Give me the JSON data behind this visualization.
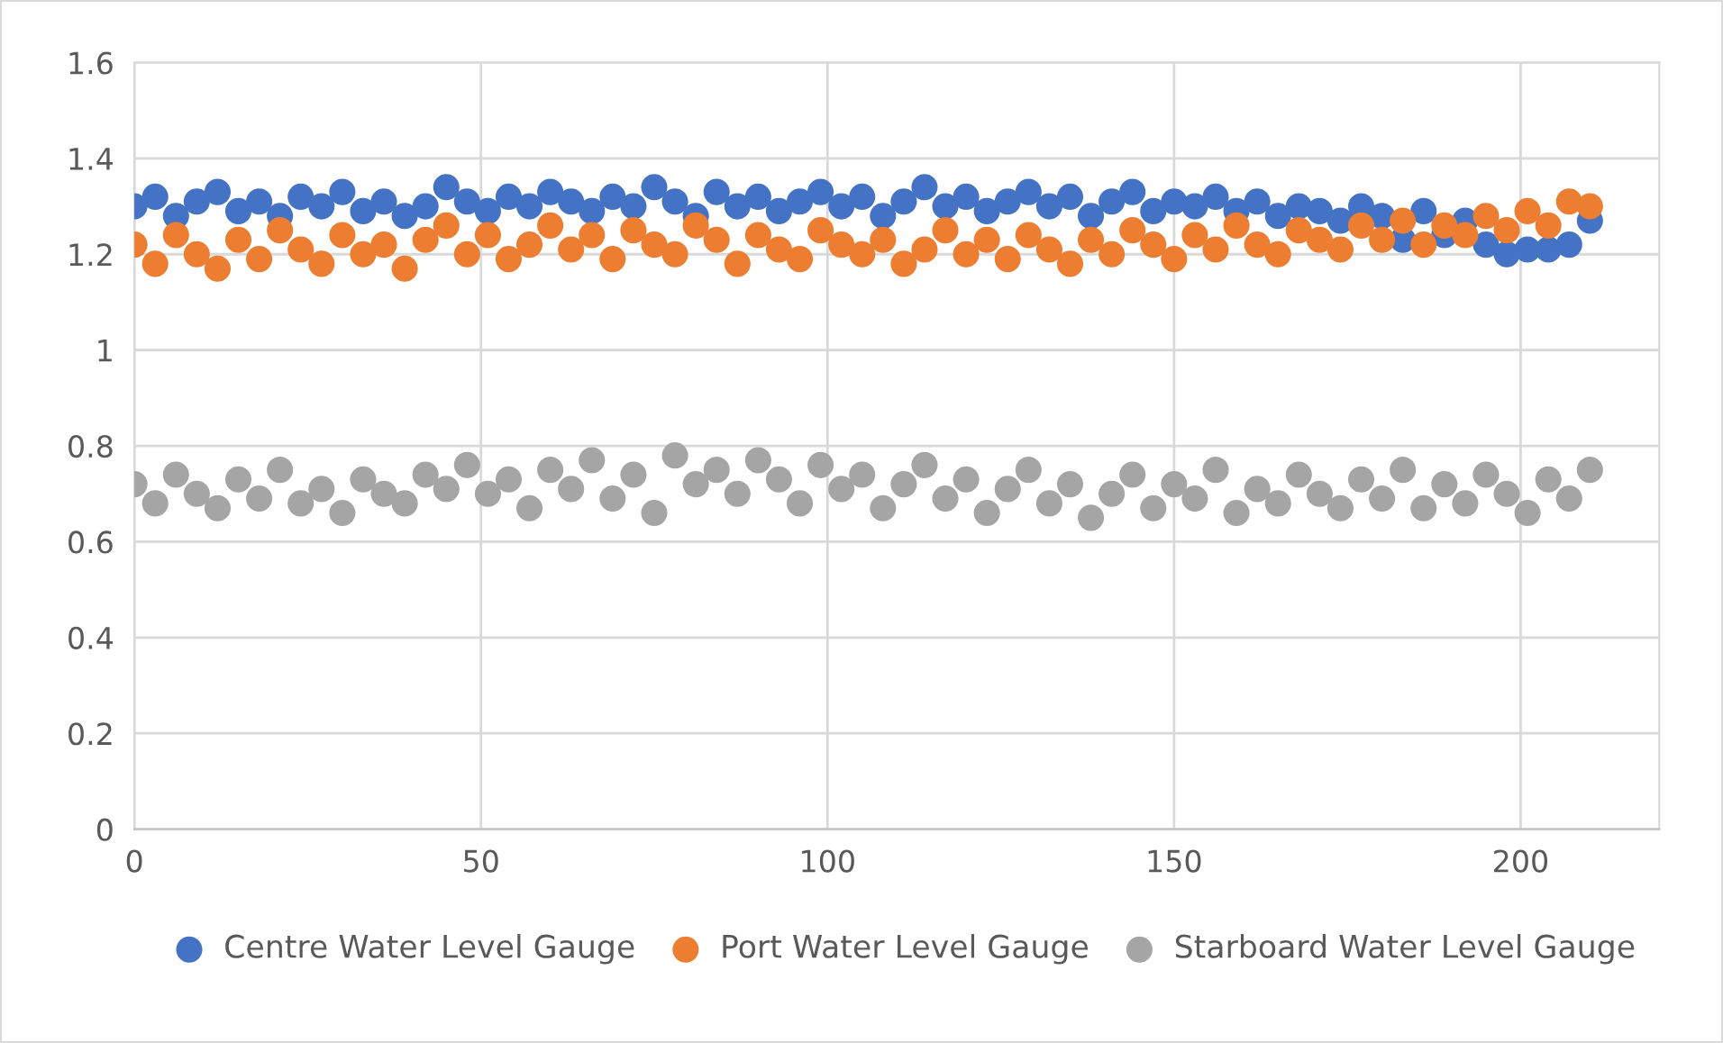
{
  "chart_data": {
    "type": "scatter",
    "x": [
      0,
      3,
      6,
      9,
      12,
      15,
      18,
      21,
      24,
      27,
      30,
      33,
      36,
      39,
      42,
      45,
      48,
      51,
      54,
      57,
      60,
      63,
      66,
      69,
      72,
      75,
      78,
      81,
      84,
      87,
      90,
      93,
      96,
      99,
      102,
      105,
      108,
      111,
      114,
      117,
      120,
      123,
      126,
      129,
      132,
      135,
      138,
      141,
      144,
      147,
      150,
      153,
      156,
      159,
      162,
      165,
      168,
      171,
      174,
      177,
      180,
      183,
      186,
      189,
      192,
      195,
      198,
      201,
      204,
      207,
      210
    ],
    "series": [
      {
        "name": "Centre Water Level Gauge",
        "color": "#4472c4",
        "values": [
          1.3,
          1.32,
          1.28,
          1.31,
          1.33,
          1.29,
          1.31,
          1.28,
          1.32,
          1.3,
          1.33,
          1.29,
          1.31,
          1.28,
          1.3,
          1.34,
          1.31,
          1.29,
          1.32,
          1.3,
          1.33,
          1.31,
          1.29,
          1.32,
          1.3,
          1.34,
          1.31,
          1.28,
          1.33,
          1.3,
          1.32,
          1.29,
          1.31,
          1.33,
          1.3,
          1.32,
          1.28,
          1.31,
          1.34,
          1.3,
          1.32,
          1.29,
          1.31,
          1.33,
          1.3,
          1.32,
          1.28,
          1.31,
          1.33,
          1.29,
          1.31,
          1.3,
          1.32,
          1.29,
          1.31,
          1.28,
          1.3,
          1.29,
          1.27,
          1.3,
          1.28,
          1.23,
          1.29,
          1.24,
          1.27,
          1.22,
          1.2,
          1.21,
          1.21,
          1.22,
          1.27
        ]
      },
      {
        "name": "Port Water Level Gauge",
        "color": "#ed7d31",
        "values": [
          1.22,
          1.18,
          1.24,
          1.2,
          1.17,
          1.23,
          1.19,
          1.25,
          1.21,
          1.18,
          1.24,
          1.2,
          1.22,
          1.17,
          1.23,
          1.26,
          1.2,
          1.24,
          1.19,
          1.22,
          1.26,
          1.21,
          1.24,
          1.19,
          1.25,
          1.22,
          1.2,
          1.26,
          1.23,
          1.18,
          1.24,
          1.21,
          1.19,
          1.25,
          1.22,
          1.2,
          1.23,
          1.18,
          1.21,
          1.25,
          1.2,
          1.23,
          1.19,
          1.24,
          1.21,
          1.18,
          1.23,
          1.2,
          1.25,
          1.22,
          1.19,
          1.24,
          1.21,
          1.26,
          1.22,
          1.2,
          1.25,
          1.23,
          1.21,
          1.26,
          1.23,
          1.27,
          1.22,
          1.26,
          1.24,
          1.28,
          1.25,
          1.29,
          1.26,
          1.31,
          1.3
        ]
      },
      {
        "name": "Starboard Water Level Gauge",
        "color": "#a5a5a5",
        "values": [
          0.72,
          0.68,
          0.74,
          0.7,
          0.67,
          0.73,
          0.69,
          0.75,
          0.68,
          0.71,
          0.66,
          0.73,
          0.7,
          0.68,
          0.74,
          0.71,
          0.76,
          0.7,
          0.73,
          0.67,
          0.75,
          0.71,
          0.77,
          0.69,
          0.74,
          0.66,
          0.78,
          0.72,
          0.75,
          0.7,
          0.77,
          0.73,
          0.68,
          0.76,
          0.71,
          0.74,
          0.67,
          0.72,
          0.76,
          0.69,
          0.73,
          0.66,
          0.71,
          0.75,
          0.68,
          0.72,
          0.65,
          0.7,
          0.74,
          0.67,
          0.72,
          0.69,
          0.75,
          0.66,
          0.71,
          0.68,
          0.74,
          0.7,
          0.67,
          0.73,
          0.69,
          0.75,
          0.67,
          0.72,
          0.68,
          0.74,
          0.7,
          0.66,
          0.73,
          0.69,
          0.75
        ]
      }
    ],
    "xlim": [
      0,
      220
    ],
    "xticks": [
      0,
      50,
      100,
      150,
      200
    ],
    "ylim": [
      0,
      1.6
    ],
    "yticks": [
      0,
      {
        "value": 0.2,
        "label": "0.2"
      },
      {
        "value": 0.4,
        "label": "0.4"
      },
      {
        "value": 0.6,
        "label": "0.6"
      },
      {
        "value": 0.8,
        "label": "0.8"
      },
      1,
      {
        "value": 1.2,
        "label": "1.2"
      },
      {
        "value": 1.4,
        "label": "1.4"
      },
      {
        "value": 1.6,
        "label": "1.6"
      }
    ],
    "grid": true,
    "legend": "bottom",
    "marker": "circle"
  }
}
